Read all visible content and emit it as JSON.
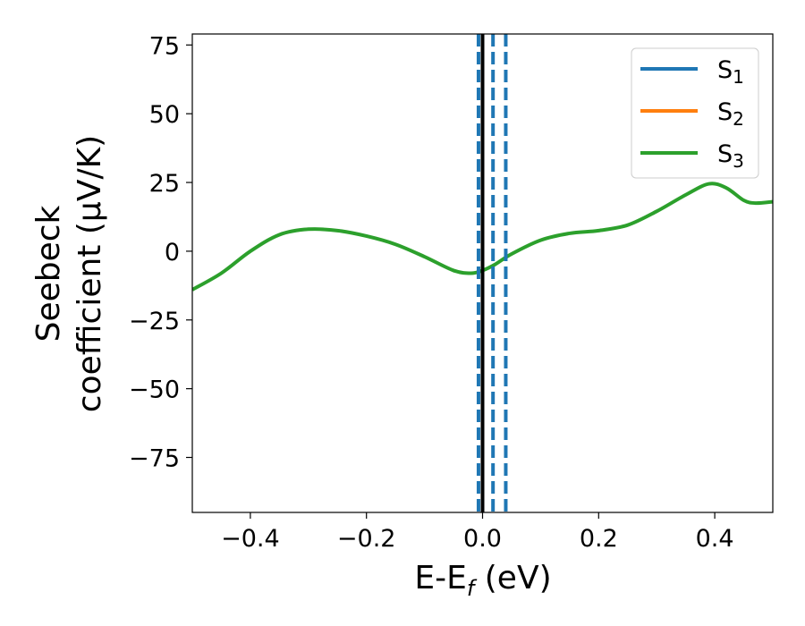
{
  "chart_data": {
    "type": "line",
    "xlabel": "E-E",
    "xlabel_sub": "f",
    "xlabel_unit": " (eV)",
    "ylabel_line1": "Seebeck",
    "ylabel_line2": "coefficient  (μV/K)",
    "xlim": [
      -0.5,
      0.5
    ],
    "ylim": [
      -95,
      79
    ],
    "xticks": [
      -0.4,
      -0.2,
      0.0,
      0.2,
      0.4
    ],
    "xtick_labels": [
      "−0.4",
      "−0.2",
      "0.0",
      "0.2",
      "0.4"
    ],
    "yticks": [
      75,
      50,
      25,
      0,
      -25,
      -50,
      -75
    ],
    "ytick_labels": [
      "75",
      "50",
      "25",
      "0",
      "−25",
      "−50",
      "−75"
    ],
    "grid": false,
    "legend_position": "top-right",
    "series": [
      {
        "name": "S",
        "sub": "1",
        "color": "#1f77b4",
        "values": []
      },
      {
        "name": "S",
        "sub": "2",
        "color": "#ff7f0e",
        "values": []
      },
      {
        "name": "S",
        "sub": "3",
        "color": "#2ca02c",
        "x": [
          -0.5,
          -0.45,
          -0.4,
          -0.35,
          -0.3,
          -0.25,
          -0.2,
          -0.15,
          -0.1,
          -0.05,
          -0.02,
          0.0,
          0.02,
          0.05,
          0.1,
          0.15,
          0.2,
          0.25,
          0.3,
          0.35,
          0.39,
          0.42,
          0.45,
          0.47,
          0.5
        ],
        "values": [
          -14,
          -8,
          0,
          6,
          8,
          7.5,
          5.5,
          2.5,
          -2,
          -7,
          -8,
          -7,
          -5,
          -1,
          4,
          6.5,
          7.5,
          9.5,
          14.5,
          20.5,
          24.5,
          23,
          18.5,
          17.5,
          18
        ]
      }
    ],
    "vlines": [
      {
        "x": -0.007,
        "color": "#1f77b4",
        "style": "dashed"
      },
      {
        "x": 0.018,
        "color": "#1f77b4",
        "style": "dashed"
      },
      {
        "x": 0.04,
        "color": "#1f77b4",
        "style": "dashed"
      },
      {
        "x": 0.0,
        "color": "#000000",
        "style": "solid"
      }
    ]
  }
}
